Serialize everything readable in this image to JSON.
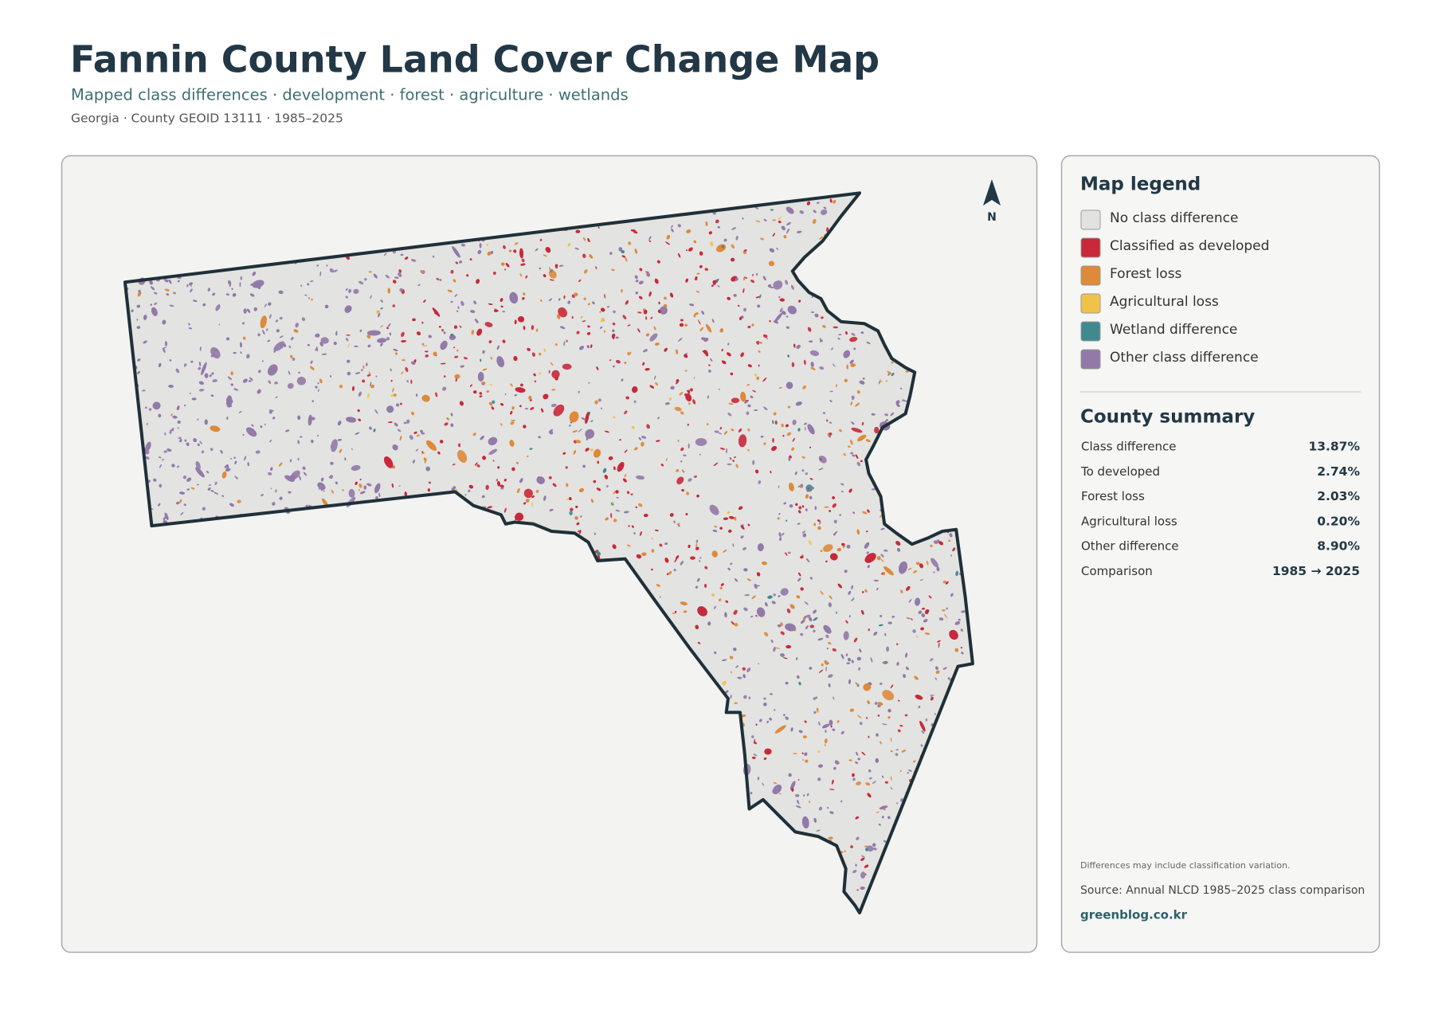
{
  "header": {
    "title": "Fannin County Land Cover Change Map",
    "subtitle": "Mapped class differences · development · forest · agriculture · wetlands",
    "meta": "Georgia · County GEOID 13111 · 1985–2025"
  },
  "map": {
    "north_label": "N"
  },
  "legend": {
    "title": "Map legend",
    "items": [
      {
        "label": "No class difference",
        "color": "#e2e2e0"
      },
      {
        "label": "Classified as developed",
        "color": "#c8283a"
      },
      {
        "label": "Forest loss",
        "color": "#dd8a3a"
      },
      {
        "label": "Agricultural loss",
        "color": "#f0c24a"
      },
      {
        "label": "Wetland difference",
        "color": "#3f8a8f"
      },
      {
        "label": "Other class difference",
        "color": "#9179a9"
      }
    ]
  },
  "summary": {
    "title": "County summary",
    "rows": [
      [
        "Class difference",
        "13.87%"
      ],
      [
        "To developed",
        "2.74%"
      ],
      [
        "Forest loss",
        "2.03%"
      ],
      [
        "Agricultural loss",
        "0.20%"
      ],
      [
        "Other difference",
        "8.90%"
      ],
      [
        "Comparison",
        "1985 → 2025"
      ]
    ]
  },
  "footer": {
    "note": "Differences may include classification variation.",
    "source": "Source: Annual NLCD 1985–2025 class comparison",
    "site": "greenblog.co.kr"
  }
}
